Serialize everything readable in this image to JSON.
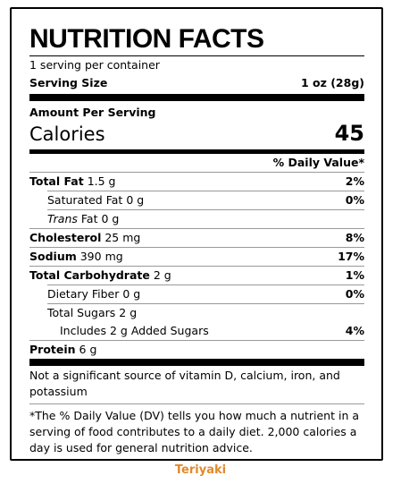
{
  "title": "NUTRITION FACTS",
  "servings": "1 serving per container",
  "serving_size": {
    "label": "Serving Size",
    "value": "1 oz (28g)"
  },
  "amount_per_serving": "Amount Per Serving",
  "calories": {
    "label": "Calories",
    "value": "45"
  },
  "dv_header": "% Daily Value*",
  "rows": [
    {
      "label": "Total Fat",
      "amount": "1.5 g",
      "dv": "2%"
    },
    {
      "label": "Saturated Fat",
      "amount": "0 g",
      "dv": "0%"
    },
    {
      "prefix": "Trans",
      "label": "Fat",
      "amount": "0 g"
    },
    {
      "label": "Cholesterol",
      "amount": "25 mg",
      "dv": "8%"
    },
    {
      "label": "Sodium",
      "amount": "390 mg",
      "dv": "17%"
    },
    {
      "label": "Total Carbohydrate",
      "amount": "2 g",
      "dv": "1%"
    },
    {
      "label": "Dietary Fiber",
      "amount": "0 g",
      "dv": "0%"
    },
    {
      "label": "Total Sugars",
      "amount": "2 g"
    },
    {
      "label": "Includes 2 g Added Sugars",
      "dv": "4%"
    },
    {
      "label": "Protein",
      "amount": "6 g"
    }
  ],
  "vitamin_note": "Not a significant source of vitamin D, calcium, iron, and potassium",
  "footnote": "*The % Daily Value (DV) tells you how much a nutrient in a serving of food contributes to a daily diet. 2,000 calories a day is used for general nutrition advice.",
  "caption": "Teriyaki"
}
